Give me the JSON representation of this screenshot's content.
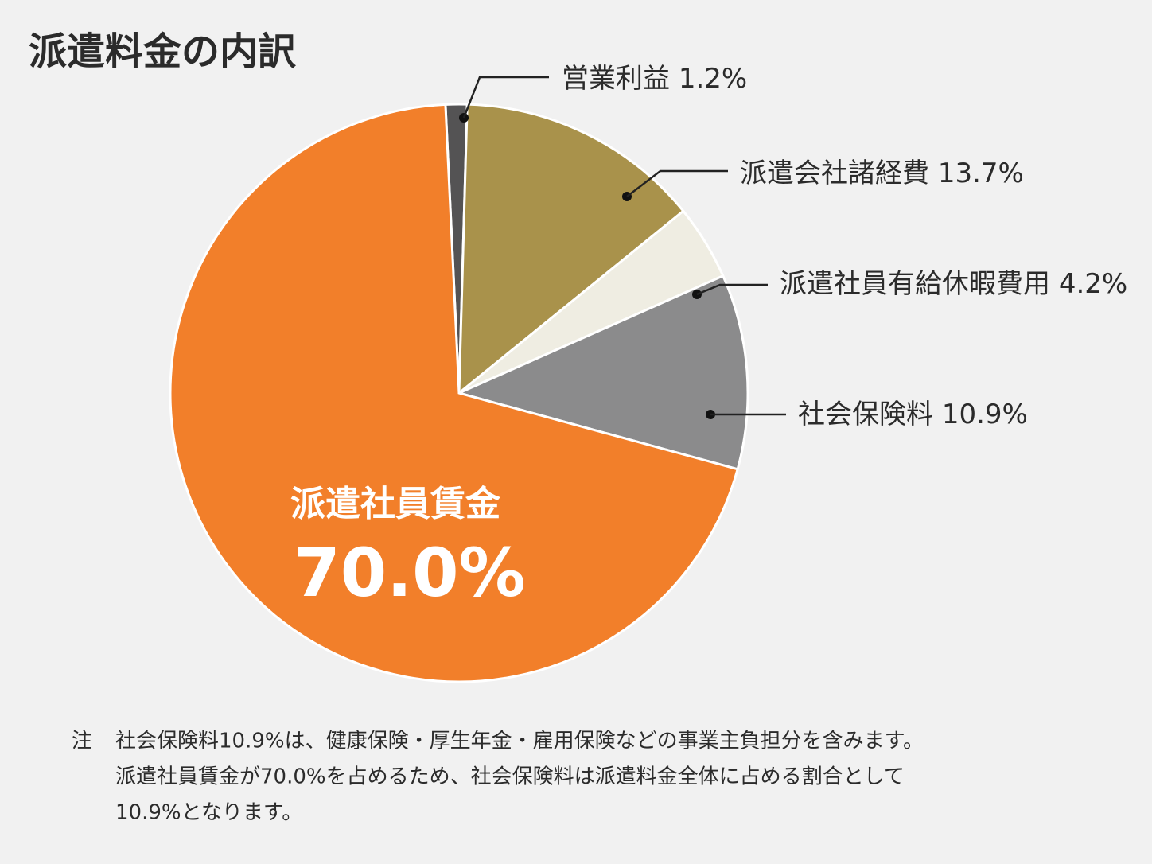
{
  "chart_data": {
    "type": "pie",
    "title": "派遣料金の内訳",
    "categories": [
      "営業利益",
      "派遣会社諸経費",
      "派遣社員有給休暇費用",
      "社会保険料",
      "派遣社員賃金"
    ],
    "values": [
      1.2,
      13.7,
      4.2,
      10.9,
      70.0
    ],
    "value_labels": [
      "1.2%",
      "13.7%",
      "4.2%",
      "10.9%",
      "70.0%"
    ],
    "colors": [
      "#545354",
      "#a9924b",
      "#efede2",
      "#8b8b8c",
      "#f27f2a"
    ],
    "note": {
      "marker": "注",
      "lines": [
        "社会保険料10.9%は、健康保険・厚生年金・雇用保険などの事業主負担分を含みます。",
        "派遣社員賃金が70.0%を占めるため、社会保険料は派遣料金全体に占める割合として",
        "10.9%となります。"
      ]
    }
  }
}
